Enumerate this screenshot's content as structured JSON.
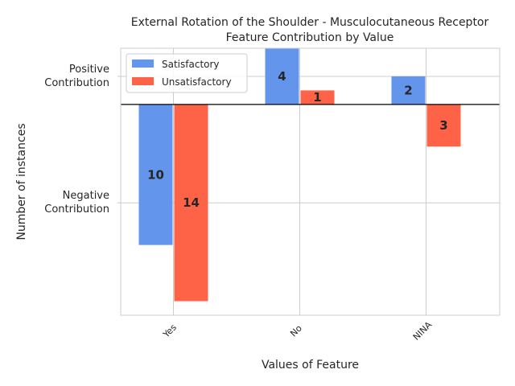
{
  "chart_data": {
    "type": "bar",
    "title_lines": [
      "External Rotation of the Shoulder - Musculocutaneous Receptor",
      "Feature Contribution by Value"
    ],
    "xlabel": "Values of Feature",
    "ylabel": "Number of instances",
    "ytick_labels": [
      {
        "value": 2,
        "lines": [
          "Positive",
          "Contribution"
        ]
      },
      {
        "value": -7,
        "lines": [
          "Negative",
          "Contribution"
        ]
      }
    ],
    "categories": [
      "Yes",
      "No",
      "NINA"
    ],
    "series": [
      {
        "name": "Satisfactory",
        "color": "#6495ED",
        "values": [
          -10,
          4,
          2
        ],
        "labels": [
          "10",
          "4",
          "2"
        ]
      },
      {
        "name": "Unsatisfactory",
        "color": "#FF6347",
        "values": [
          -14,
          1,
          -3
        ],
        "labels": [
          "14",
          "1",
          "3"
        ]
      }
    ],
    "ylim": [
      -15,
      4
    ],
    "grid": true,
    "legend_position": "top-left"
  }
}
